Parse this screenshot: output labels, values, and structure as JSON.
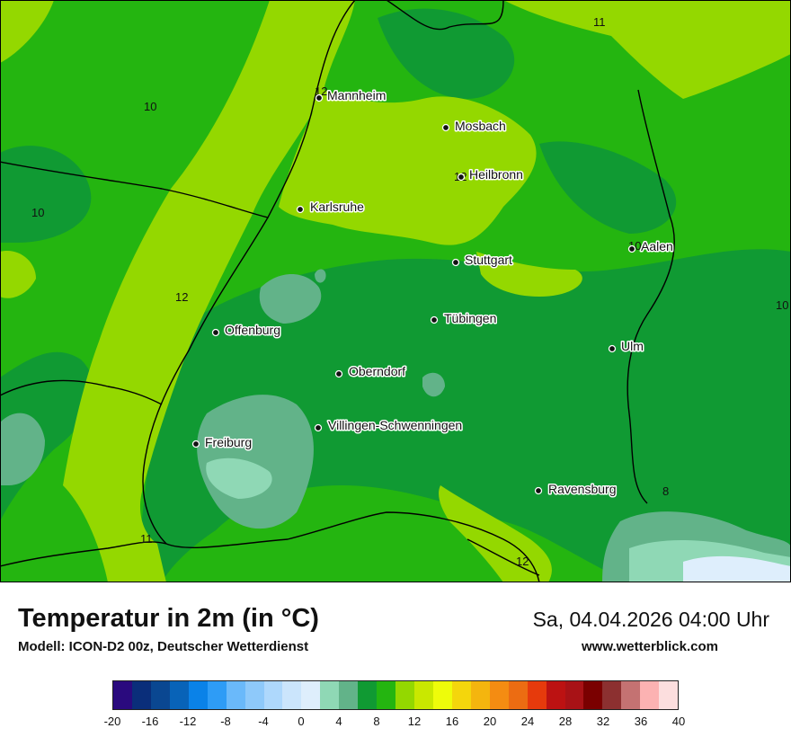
{
  "title": "Temperatur in 2m (in °C)",
  "subtitle": "Modell: ICON-D2 00z, Deutscher Wetterdienst",
  "datetime": "Sa, 04.04.2026 04:00 Uhr",
  "website": "www.wetterblick.com",
  "cities": [
    {
      "name": "Mannheim"
    },
    {
      "name": "Mosbach"
    },
    {
      "name": "Heilbronn"
    },
    {
      "name": "Karlsruhe"
    },
    {
      "name": "Aalen"
    },
    {
      "name": "Stuttgart"
    },
    {
      "name": "Tübingen"
    },
    {
      "name": "Offenburg"
    },
    {
      "name": "Ulm"
    },
    {
      "name": "Oberndorf"
    },
    {
      "name": "Villingen-Schwenningen"
    },
    {
      "name": "Freiburg"
    },
    {
      "name": "Ravensburg"
    }
  ],
  "isotherm_labels": [
    "11",
    "10",
    "12",
    "12",
    "10",
    "12",
    "10",
    "10",
    "8",
    "11",
    "12"
  ],
  "legend": {
    "colors": [
      "#2a0a7e",
      "#0a2e7a",
      "#0a4791",
      "#0863b8",
      "#0a82e8",
      "#2e9cf6",
      "#6ab9fa",
      "#8ec9fa",
      "#aed8fc",
      "#cbe5fc",
      "#deeefc",
      "#8fd8b5",
      "#62b389",
      "#109a33",
      "#24b510",
      "#94d800",
      "#c9e800",
      "#eefc0a",
      "#f4d60c",
      "#f4b50e",
      "#f48c12",
      "#ec6c12",
      "#e63a0c",
      "#bc1212",
      "#a81216",
      "#7a0000",
      "#8c3030",
      "#c47272",
      "#fcb2b2",
      "#fcdede"
    ],
    "ticks": [
      "-20",
      "-16",
      "-12",
      "-8",
      "-4",
      "0",
      "4",
      "8",
      "12",
      "16",
      "20",
      "24",
      "28",
      "32",
      "36",
      "40"
    ]
  }
}
